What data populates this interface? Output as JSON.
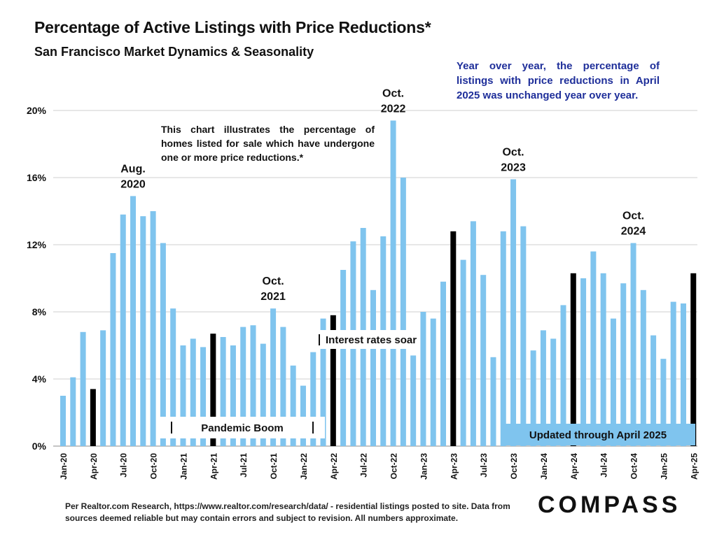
{
  "title": "Percentage of Active Listings with Price Reductions*",
  "subtitle": "San Francisco Market Dynamics & Seasonality",
  "yoy_note": "Year over year, the percentage of listings with price reductions in April 2025 was unchanged year over year.",
  "explain_note": "This chart illustrates the percentage of homes listed for sale which have undergone one or more price reductions.*",
  "footer_note": "Per Realtor.com Research, https://www.realtor.com/research/data/ - residential listings posted to site.  Data from sources deemed reliable but may contain errors and subject to revision. All numbers approximate.",
  "logo_text": "COMPASS",
  "colors": {
    "bar": "#7fc4ee",
    "highlight": "#000000",
    "grid": "#cfcfcf",
    "note_blue": "#1f2f9a",
    "banner": "#7fc4ee"
  },
  "chart_data": {
    "type": "bar",
    "ylim": [
      0,
      20
    ],
    "yticks": [
      "0%",
      "4%",
      "8%",
      "12%",
      "16%",
      "20%"
    ],
    "grid": true,
    "x_tick_labels": [
      "Jan-20",
      "Apr-20",
      "Jul-20",
      "Oct-20",
      "Jan-21",
      "Apr-21",
      "Jul-21",
      "Oct-21",
      "Jan-22",
      "Apr-22",
      "Jul-22",
      "Oct-22",
      "Jan-23",
      "Apr-23",
      "Jul-23",
      "Oct-23",
      "Jan-24",
      "Apr-24",
      "Jul-24",
      "Oct-24",
      "Jan-25",
      "Apr-25"
    ],
    "months": [
      "Jan-20",
      "Feb-20",
      "Mar-20",
      "Apr-20",
      "May-20",
      "Jun-20",
      "Jul-20",
      "Aug-20",
      "Sep-20",
      "Oct-20",
      "Nov-20",
      "Dec-20",
      "Jan-21",
      "Feb-21",
      "Mar-21",
      "Apr-21",
      "May-21",
      "Jun-21",
      "Jul-21",
      "Aug-21",
      "Sep-21",
      "Oct-21",
      "Nov-21",
      "Dec-21",
      "Jan-22",
      "Feb-22",
      "Mar-22",
      "Apr-22",
      "May-22",
      "Jun-22",
      "Jul-22",
      "Aug-22",
      "Sep-22",
      "Oct-22",
      "Nov-22",
      "Dec-22",
      "Jan-23",
      "Feb-23",
      "Mar-23",
      "Apr-23",
      "May-23",
      "Jun-23",
      "Jul-23",
      "Aug-23",
      "Sep-23",
      "Oct-23",
      "Nov-23",
      "Dec-23",
      "Jan-24",
      "Feb-24",
      "Mar-24",
      "Apr-24",
      "May-24",
      "Jun-24",
      "Jul-24",
      "Aug-24",
      "Sep-24",
      "Oct-24",
      "Nov-24",
      "Dec-24",
      "Jan-25",
      "Feb-25",
      "Mar-25",
      "Apr-25"
    ],
    "values": [
      3.0,
      4.1,
      6.8,
      3.4,
      6.9,
      11.5,
      13.8,
      14.9,
      13.7,
      14.0,
      12.1,
      8.2,
      6.0,
      6.4,
      5.9,
      6.7,
      6.5,
      6.0,
      7.1,
      7.2,
      6.1,
      8.2,
      7.1,
      4.8,
      3.6,
      5.6,
      7.6,
      7.8,
      10.5,
      12.2,
      13.0,
      9.3,
      12.5,
      19.4,
      16.0,
      5.4,
      8.0,
      7.6,
      9.8,
      12.8,
      11.1,
      13.4,
      10.2,
      5.3,
      12.8,
      15.9,
      13.1,
      5.7,
      6.9,
      6.4,
      8.4,
      10.3,
      10.0,
      11.6,
      10.3,
      7.6,
      9.7,
      12.1,
      9.3,
      6.6,
      5.2,
      8.6,
      8.5,
      10.3
    ],
    "highlighted": [
      "Apr-20",
      "Apr-21",
      "Apr-22",
      "Apr-23",
      "Apr-24",
      "Apr-25"
    ],
    "annotations": [
      {
        "month": "Aug-20",
        "lines": [
          "Aug.",
          "2020"
        ]
      },
      {
        "month": "Oct-21",
        "lines": [
          "Oct.",
          "2021"
        ]
      },
      {
        "month": "Oct-22",
        "lines": [
          "Oct.",
          "2022"
        ]
      },
      {
        "month": "Oct-23",
        "lines": [
          "Oct.",
          "2023"
        ]
      },
      {
        "month": "Oct-24",
        "lines": [
          "Oct.",
          "2024"
        ]
      }
    ],
    "banners": {
      "pandemic": "Pandemic Boom",
      "interest": "Interest rates soar",
      "updated": "Updated through April 2025"
    }
  }
}
